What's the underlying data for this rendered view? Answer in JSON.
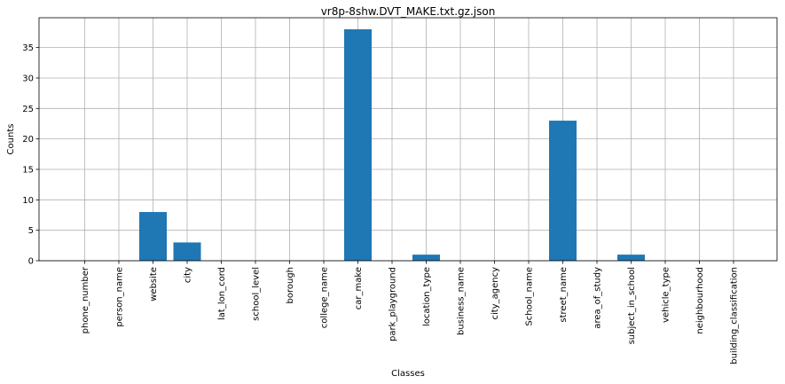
{
  "chart_data": {
    "type": "bar",
    "title": "vr8p-8shw.DVT_MAKE.txt.gz.json",
    "xlabel": "Classes",
    "ylabel": "Counts",
    "categories": [
      "phone_number",
      "person_name",
      "website",
      "city",
      "lat_lon_cord",
      "school_level",
      "borough",
      "college_name",
      "car_make",
      "park_playground",
      "location_type",
      "business_name",
      "city_agency",
      "School_name",
      "street_name",
      "area_of_study",
      "subject_in_school",
      "vehicle_type",
      "neighbourhood",
      "building_classification"
    ],
    "values": [
      0,
      0,
      8,
      3,
      0,
      0,
      0,
      0,
      38,
      0,
      1,
      0,
      0,
      0,
      23,
      0,
      1,
      0,
      0,
      0
    ],
    "ylim": [
      0,
      39.9
    ],
    "yticks": [
      0,
      5,
      10,
      15,
      20,
      25,
      30,
      35
    ],
    "grid": true,
    "color": "#1f77b4"
  }
}
